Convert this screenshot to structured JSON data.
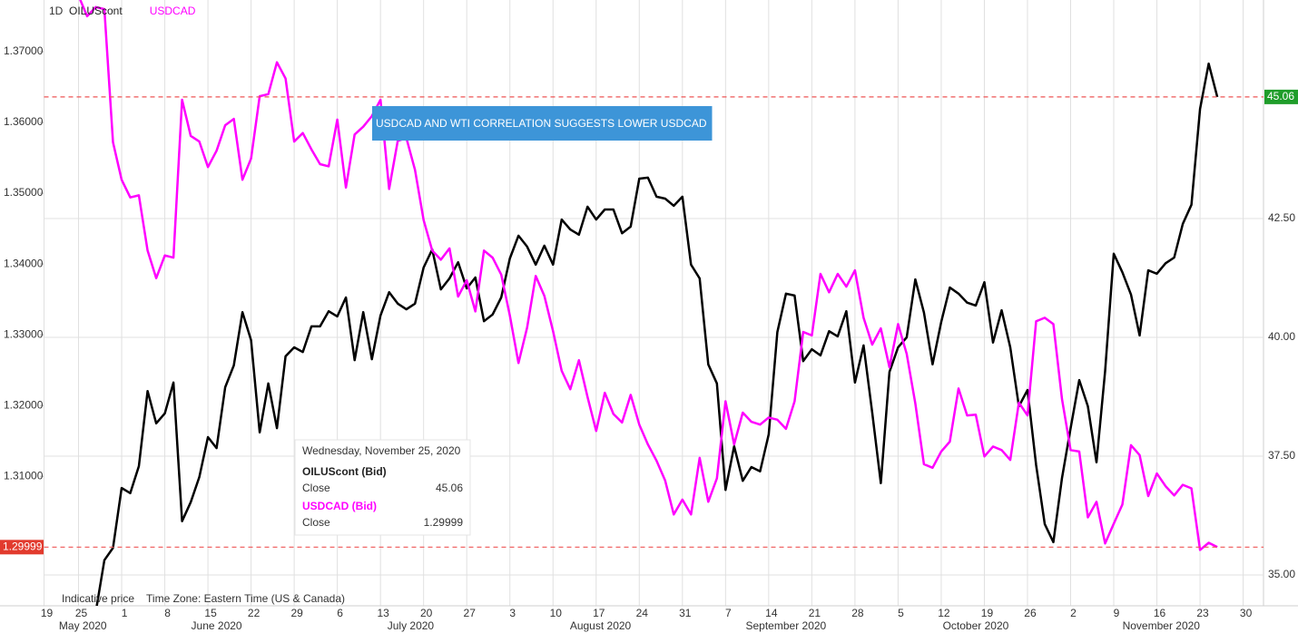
{
  "chart_data": {
    "type": "line",
    "interval": "1D",
    "annotation": "USDCAD AND WTI CORRELATION SUGGESTS LOWER USDCAD",
    "footer": [
      "Indicative price",
      "Time Zone: Eastern Time (US & Canada)"
    ],
    "x": [
      "2020-05-25",
      "2020-05-26",
      "2020-05-27",
      "2020-05-28",
      "2020-05-29",
      "2020-06-01",
      "2020-06-02",
      "2020-06-03",
      "2020-06-04",
      "2020-06-05",
      "2020-06-08",
      "2020-06-09",
      "2020-06-10",
      "2020-06-11",
      "2020-06-12",
      "2020-06-15",
      "2020-06-16",
      "2020-06-17",
      "2020-06-18",
      "2020-06-19",
      "2020-06-22",
      "2020-06-23",
      "2020-06-24",
      "2020-06-25",
      "2020-06-26",
      "2020-06-29",
      "2020-06-30",
      "2020-07-01",
      "2020-07-02",
      "2020-07-03",
      "2020-07-06",
      "2020-07-07",
      "2020-07-08",
      "2020-07-09",
      "2020-07-10",
      "2020-07-13",
      "2020-07-14",
      "2020-07-15",
      "2020-07-16",
      "2020-07-17",
      "2020-07-20",
      "2020-07-21",
      "2020-07-22",
      "2020-07-23",
      "2020-07-24",
      "2020-07-27",
      "2020-07-28",
      "2020-07-29",
      "2020-07-30",
      "2020-07-31",
      "2020-08-03",
      "2020-08-04",
      "2020-08-05",
      "2020-08-06",
      "2020-08-07",
      "2020-08-10",
      "2020-08-11",
      "2020-08-12",
      "2020-08-13",
      "2020-08-14",
      "2020-08-17",
      "2020-08-18",
      "2020-08-19",
      "2020-08-20",
      "2020-08-21",
      "2020-08-24",
      "2020-08-25",
      "2020-08-26",
      "2020-08-27",
      "2020-08-28",
      "2020-08-31",
      "2020-09-01",
      "2020-09-02",
      "2020-09-03",
      "2020-09-04",
      "2020-09-07",
      "2020-09-08",
      "2020-09-09",
      "2020-09-10",
      "2020-09-11",
      "2020-09-14",
      "2020-09-15",
      "2020-09-16",
      "2020-09-17",
      "2020-09-18",
      "2020-09-21",
      "2020-09-22",
      "2020-09-23",
      "2020-09-24",
      "2020-09-25",
      "2020-09-28",
      "2020-09-29",
      "2020-09-30",
      "2020-10-01",
      "2020-10-02",
      "2020-10-05",
      "2020-10-06",
      "2020-10-07",
      "2020-10-08",
      "2020-10-09",
      "2020-10-12",
      "2020-10-13",
      "2020-10-14",
      "2020-10-15",
      "2020-10-16",
      "2020-10-19",
      "2020-10-20",
      "2020-10-21",
      "2020-10-22",
      "2020-10-23",
      "2020-10-26",
      "2020-10-27",
      "2020-10-28",
      "2020-10-29",
      "2020-10-30",
      "2020-11-02",
      "2020-11-03",
      "2020-11-04",
      "2020-11-05",
      "2020-11-06",
      "2020-11-09",
      "2020-11-10",
      "2020-11-11",
      "2020-11-12",
      "2020-11-13",
      "2020-11-16",
      "2020-11-17",
      "2020-11-18",
      "2020-11-19",
      "2020-11-20",
      "2020-11-23",
      "2020-11-24",
      "2020-11-25"
    ],
    "series": [
      {
        "name": "OILUScont",
        "color": "#000000",
        "axis": "y2",
        "values": [
          null,
          null,
          34.22,
          35.31,
          35.57,
          36.83,
          36.72,
          37.29,
          38.87,
          38.19,
          38.4,
          39.05,
          36.13,
          36.53,
          37.06,
          37.9,
          37.67,
          38.95,
          39.41,
          40.53,
          39.94,
          38.0,
          39.03,
          38.09,
          39.6,
          39.79,
          39.69,
          40.23,
          40.23,
          40.55,
          40.44,
          40.84,
          39.52,
          40.53,
          39.54,
          40.46,
          40.95,
          40.71,
          40.59,
          40.71,
          41.47,
          41.85,
          41.01,
          41.24,
          41.58,
          41.03,
          41.26,
          40.34,
          40.48,
          40.84,
          41.66,
          42.14,
          41.91,
          41.53,
          41.93,
          41.53,
          42.48,
          42.27,
          42.16,
          42.75,
          42.48,
          42.69,
          42.69,
          42.19,
          42.33,
          43.34,
          43.36,
          42.96,
          42.92,
          42.77,
          42.96,
          41.53,
          41.24,
          39.43,
          39.03,
          36.79,
          37.71,
          36.98,
          37.27,
          37.18,
          37.96,
          40.11,
          40.92,
          40.88,
          39.5,
          39.75,
          39.62,
          40.13,
          40.02,
          40.55,
          39.05,
          39.83,
          38.42,
          36.93,
          39.27,
          39.79,
          40.0,
          41.22,
          40.52,
          39.43,
          40.32,
          41.05,
          40.92,
          40.73,
          40.67,
          41.16,
          39.89,
          40.57,
          39.79,
          38.55,
          38.89,
          37.31,
          36.07,
          35.69,
          37.04,
          38.09,
          39.1,
          38.55,
          37.37,
          39.29,
          41.76,
          41.37,
          40.9,
          40.04,
          41.41,
          41.34,
          41.56,
          41.68,
          42.39,
          42.79,
          44.81,
          45.76,
          45.06
        ]
      },
      {
        "name": "USDCAD",
        "color": "#ff00ff",
        "axis": "y",
        "values": [
          1.3779,
          1.375,
          1.3763,
          1.376,
          1.3572,
          1.3519,
          1.3494,
          1.3497,
          1.3419,
          1.338,
          1.3412,
          1.3409,
          1.3632,
          1.3581,
          1.3573,
          1.3537,
          1.356,
          1.3596,
          1.3605,
          1.3519,
          1.3549,
          1.3637,
          1.364,
          1.3685,
          1.3662,
          1.3573,
          1.3585,
          1.3562,
          1.3541,
          1.3538,
          1.3604,
          1.3508,
          1.3583,
          1.3594,
          1.3609,
          1.3632,
          1.3506,
          1.3574,
          1.3578,
          1.3533,
          1.3462,
          1.3419,
          1.3406,
          1.3422,
          1.3354,
          1.3377,
          1.3333,
          1.3419,
          1.3409,
          1.3385,
          1.3327,
          1.326,
          1.331,
          1.3383,
          1.3355,
          1.3305,
          1.3249,
          1.3223,
          1.3264,
          1.3212,
          1.3164,
          1.3218,
          1.3188,
          1.3176,
          1.3215,
          1.3173,
          1.3145,
          1.3122,
          1.3094,
          1.3046,
          1.3067,
          1.3046,
          1.3126,
          1.3064,
          1.3097,
          1.3206,
          1.3145,
          1.319,
          1.3177,
          1.3173,
          1.3183,
          1.318,
          1.3167,
          1.3206,
          1.3304,
          1.3299,
          1.3386,
          1.336,
          1.3386,
          1.3368,
          1.3391,
          1.3324,
          1.3286,
          1.3309,
          1.3254,
          1.3315,
          1.3273,
          1.3203,
          1.3117,
          1.3112,
          1.3135,
          1.3149,
          1.3224,
          1.3186,
          1.3187,
          1.3128,
          1.3142,
          1.3137,
          1.3123,
          1.3204,
          1.3186,
          1.3319,
          1.3324,
          1.3315,
          1.3209,
          1.3137,
          1.3135,
          1.3042,
          1.3064,
          1.3005,
          1.3033,
          1.306,
          1.3144,
          1.313,
          1.3072,
          1.3104,
          1.3086,
          1.3073,
          1.3088,
          1.3083,
          1.2996,
          1.3006,
          1.29999
        ]
      }
    ],
    "xlim": [
      "2020-05-19",
      "2020-12-02"
    ],
    "xticks": [
      {
        "value": "2020-05-19",
        "label": "19"
      },
      {
        "value": "2020-05-25",
        "label": "25"
      },
      {
        "value": "2020-06-01",
        "label": "1"
      },
      {
        "value": "2020-06-08",
        "label": "8"
      },
      {
        "value": "2020-06-15",
        "label": "15"
      },
      {
        "value": "2020-06-22",
        "label": "22"
      },
      {
        "value": "2020-06-29",
        "label": "29"
      },
      {
        "value": "2020-07-06",
        "label": "6"
      },
      {
        "value": "2020-07-13",
        "label": "13"
      },
      {
        "value": "2020-07-20",
        "label": "20"
      },
      {
        "value": "2020-07-27",
        "label": "27"
      },
      {
        "value": "2020-08-03",
        "label": "3"
      },
      {
        "value": "2020-08-10",
        "label": "10"
      },
      {
        "value": "2020-08-17",
        "label": "17"
      },
      {
        "value": "2020-08-24",
        "label": "24"
      },
      {
        "value": "2020-08-31",
        "label": "31"
      },
      {
        "value": "2020-09-07",
        "label": "7"
      },
      {
        "value": "2020-09-14",
        "label": "14"
      },
      {
        "value": "2020-09-21",
        "label": "21"
      },
      {
        "value": "2020-09-28",
        "label": "28"
      },
      {
        "value": "2020-10-05",
        "label": "5"
      },
      {
        "value": "2020-10-12",
        "label": "12"
      },
      {
        "value": "2020-10-19",
        "label": "19"
      },
      {
        "value": "2020-10-26",
        "label": "26"
      },
      {
        "value": "2020-11-02",
        "label": "2"
      },
      {
        "value": "2020-11-09",
        "label": "9"
      },
      {
        "value": "2020-11-16",
        "label": "16"
      },
      {
        "value": "2020-11-23",
        "label": "23"
      },
      {
        "value": "2020-11-30",
        "label": "30"
      }
    ],
    "month_labels": [
      {
        "value": "2020-05",
        "label": "May 2020"
      },
      {
        "value": "2020-06",
        "label": "June 2020"
      },
      {
        "value": "2020-07",
        "label": "July 2020"
      },
      {
        "value": "2020-08",
        "label": "August 2020"
      },
      {
        "value": "2020-09",
        "label": "September 2020"
      },
      {
        "value": "2020-10",
        "label": "October 2020"
      },
      {
        "value": "2020-11",
        "label": "November 2020"
      }
    ],
    "ylim": [
      1.2917,
      1.3773
    ],
    "yticks": [
      {
        "value": 1.31,
        "label": "1.31000"
      },
      {
        "value": 1.32,
        "label": "1.32000"
      },
      {
        "value": 1.33,
        "label": "1.33000"
      },
      {
        "value": 1.34,
        "label": "1.34000"
      },
      {
        "value": 1.35,
        "label": "1.35000"
      },
      {
        "value": 1.36,
        "label": "1.36000"
      },
      {
        "value": 1.37,
        "label": "1.37000"
      }
    ],
    "y2lim": [
      34.35,
      47.1
    ],
    "y2ticks": [
      {
        "value": 35,
        "label": "35.00"
      },
      {
        "value": 37.5,
        "label": "37.50"
      },
      {
        "value": 40,
        "label": "40.00"
      },
      {
        "value": 42.5,
        "label": "42.50"
      }
    ],
    "grid": true,
    "tooltip": {
      "date": "Wednesday, November 25, 2020",
      "items": [
        {
          "name": "OILUScont (Bid)",
          "label": "Close",
          "value": 45.06
        },
        {
          "name": "USDCAD (Bid)",
          "label": "Close",
          "value": 1.29999
        }
      ]
    }
  }
}
